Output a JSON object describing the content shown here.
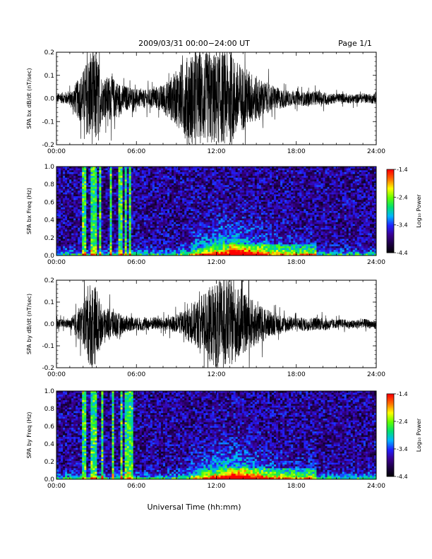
{
  "header": {
    "date_range": "2009/03/31  00:00−24:00 UT",
    "page": "Page 1/1"
  },
  "x_axis": {
    "label": "Universal Time (hh:mm)",
    "tick_labels": [
      "00:00",
      "06:00",
      "12:00",
      "18:00",
      "24:00"
    ]
  },
  "colorbar": {
    "label": "Log₁₀ Power",
    "tick_labels": [
      "-1.4",
      "-2.4",
      "-3.4",
      "-4.4"
    ],
    "colors": [
      "#000000",
      "#1a0040",
      "#3a0090",
      "#2020ff",
      "#00b4ff",
      "#00e070",
      "#60ff00",
      "#ffff00",
      "#ff7000",
      "#ff0000"
    ]
  },
  "chart_data": [
    {
      "type": "line",
      "ylabel": "SPA bx dB/dt (nT/sec)",
      "xlim": [
        0,
        24
      ],
      "ylim": [
        -0.2,
        0.2
      ],
      "y_tick_labels": [
        "0.2",
        "0.1",
        "0.0",
        "-0.1",
        "-0.2"
      ],
      "x": [
        0,
        1,
        2,
        2.5,
        3,
        3.5,
        4,
        5,
        6,
        7,
        8,
        9,
        10,
        11,
        12,
        13,
        14,
        15,
        16,
        17,
        18,
        19,
        20,
        21,
        22,
        23,
        24
      ],
      "amplitude_envelope": [
        0.02,
        0.03,
        0.12,
        0.2,
        0.2,
        0.08,
        0.1,
        0.06,
        0.04,
        0.04,
        0.06,
        0.12,
        0.2,
        0.2,
        0.2,
        0.2,
        0.14,
        0.1,
        0.06,
        0.04,
        0.03,
        0.03,
        0.03,
        0.02,
        0.02,
        0.02,
        0.02
      ]
    },
    {
      "type": "heatmap",
      "ylabel": "SPA bx Freq (Hz)",
      "xlim": [
        0,
        24
      ],
      "ylim": [
        0,
        1.0
      ],
      "y_tick_labels": [
        "1.0",
        "0.8",
        "0.6",
        "0.4",
        "0.2",
        "0.0"
      ],
      "zlim": [
        -4.4,
        -1.4
      ],
      "vertical_streaks_hours": [
        2.1,
        2.7,
        3.0,
        3.3,
        4.1,
        4.8,
        5.2,
        5.5
      ],
      "hotspot": {
        "time": 13.0,
        "freq": 0.02,
        "log_power": -1.9
      },
      "tail_end_hours": 19.5
    },
    {
      "type": "line",
      "ylabel": "SPA by dB/dt (nT/sec)",
      "xlim": [
        0,
        24
      ],
      "ylim": [
        -0.2,
        0.2
      ],
      "y_tick_labels": [
        "0.2",
        "0.1",
        "0.0",
        "-0.1",
        "-0.2"
      ],
      "x": [
        0,
        1,
        2,
        2.5,
        3,
        3.5,
        4,
        5,
        6,
        7,
        8,
        9,
        10,
        11,
        12,
        13,
        14,
        15,
        16,
        17,
        18,
        19,
        20,
        21,
        22,
        23,
        24
      ],
      "amplitude_envelope": [
        0.02,
        0.02,
        0.1,
        0.2,
        0.18,
        0.06,
        0.08,
        0.04,
        0.03,
        0.03,
        0.03,
        0.04,
        0.08,
        0.14,
        0.2,
        0.2,
        0.14,
        0.1,
        0.06,
        0.04,
        0.03,
        0.03,
        0.03,
        0.02,
        0.02,
        0.02,
        0.02
      ]
    },
    {
      "type": "heatmap",
      "ylabel": "SPA by Freq (Hz)",
      "xlim": [
        0,
        24
      ],
      "ylim": [
        0,
        1.0
      ],
      "y_tick_labels": [
        "1.0",
        "0.8",
        "0.6",
        "0.4",
        "0.2",
        "0.0"
      ],
      "zlim": [
        -4.4,
        -1.4
      ],
      "vertical_streaks_hours": [
        2.1,
        2.7,
        3.0,
        3.4,
        4.2,
        4.9,
        5.3,
        5.6
      ],
      "hotspot": {
        "time": 13.0,
        "freq": 0.02,
        "log_power": -2.1
      },
      "tail_end_hours": 19.5
    }
  ]
}
